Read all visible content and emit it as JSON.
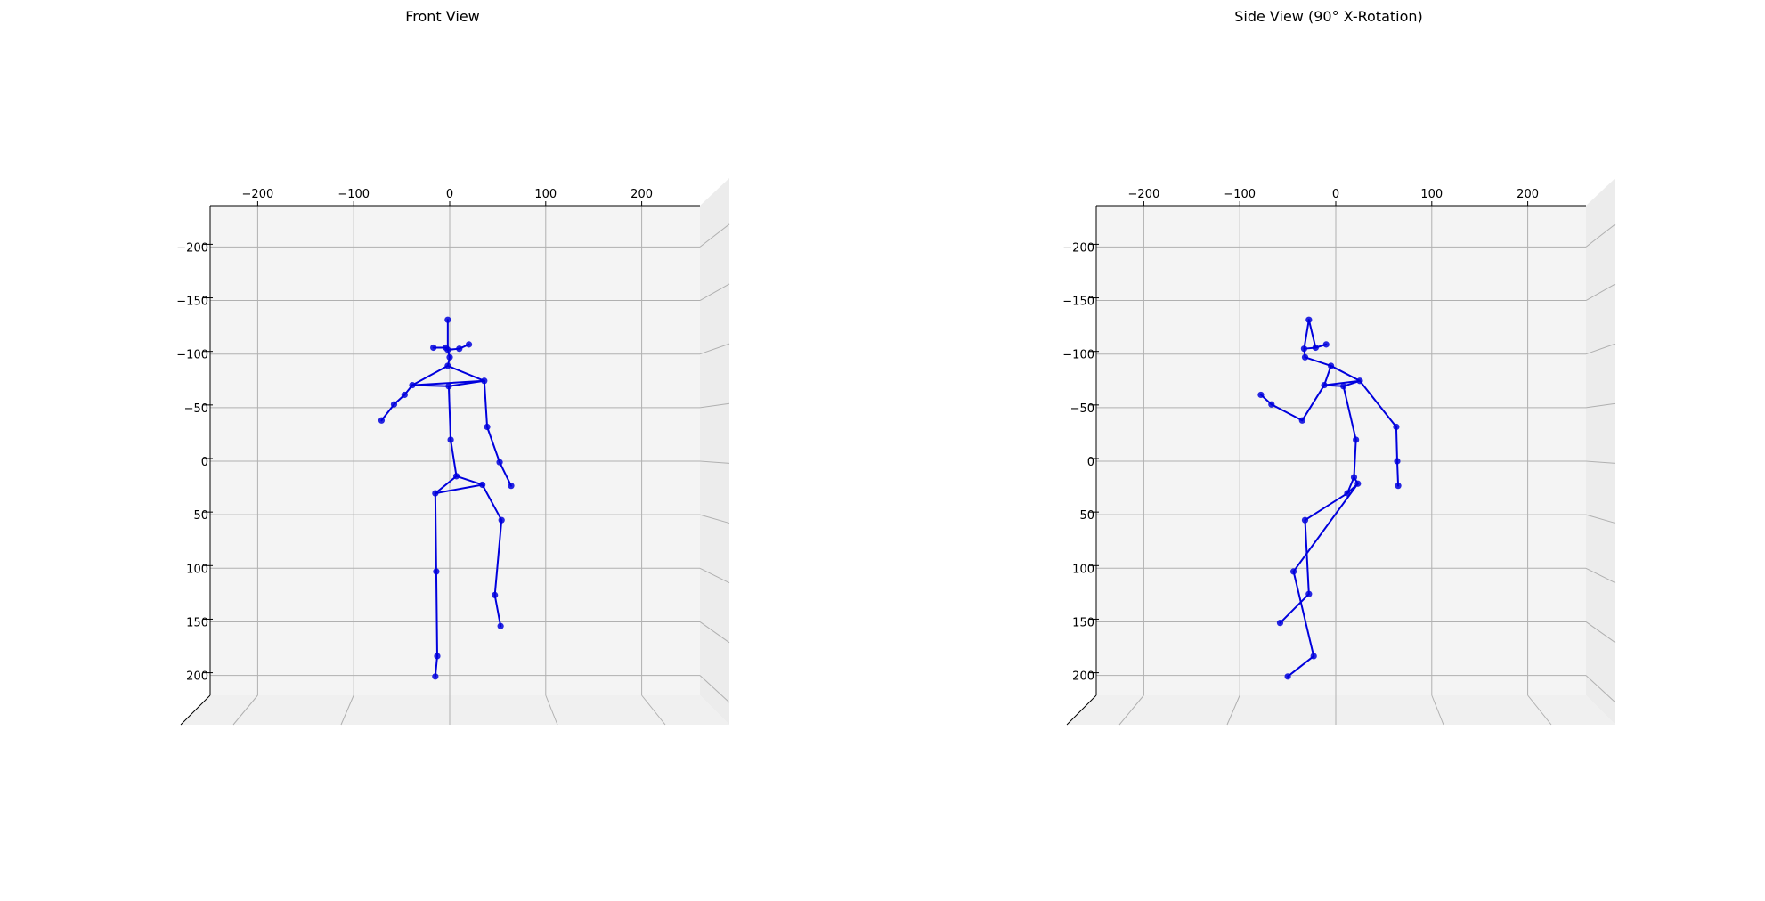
{
  "figure": {
    "colors": {
      "pane_back": "#f4f4f4",
      "pane_floor": "#f0f0f0",
      "pane_side": "#ececec",
      "grid": "#b0b0b0",
      "axis": "#000000",
      "skeleton": "#0000dd"
    }
  },
  "chart_data": [
    {
      "type": "scatter",
      "subtype": "3d-pose-skeleton",
      "title": "Front View",
      "x_ticks": [
        "−200",
        "−100",
        "0",
        "100",
        "200"
      ],
      "y_ticks": [
        "−200",
        "−150",
        "−100",
        "−50",
        "0",
        "50",
        "100",
        "150",
        "200"
      ],
      "xlim": [
        -250,
        260
      ],
      "ylim": [
        -250,
        220
      ],
      "joints": [
        {
          "name": "head-top",
          "x": -2,
          "y": -132
        },
        {
          "name": "ear-left",
          "x": -17,
          "y": -106
        },
        {
          "name": "eye-left",
          "x": -4,
          "y": -106
        },
        {
          "name": "nose",
          "x": -2,
          "y": -104
        },
        {
          "name": "eye-right",
          "x": 10,
          "y": -105
        },
        {
          "name": "ear-right",
          "x": 20,
          "y": -109
        },
        {
          "name": "chin",
          "x": 0,
          "y": -97
        },
        {
          "name": "neck",
          "x": -2,
          "y": -89
        },
        {
          "name": "shoulder-left",
          "x": -39,
          "y": -71
        },
        {
          "name": "chest",
          "x": -1,
          "y": -70
        },
        {
          "name": "shoulder-right",
          "x": 36,
          "y": -75
        },
        {
          "name": "elbow-left",
          "x": -47,
          "y": -62
        },
        {
          "name": "forearm-left",
          "x": -58,
          "y": -53
        },
        {
          "name": "wrist-left",
          "x": -71,
          "y": -38
        },
        {
          "name": "elbow-right",
          "x": 39,
          "y": -32
        },
        {
          "name": "forearm-right",
          "x": 52,
          "y": 1
        },
        {
          "name": "wrist-right",
          "x": 64,
          "y": 23
        },
        {
          "name": "spine",
          "x": 1,
          "y": -20
        },
        {
          "name": "pelvis",
          "x": 7,
          "y": 14
        },
        {
          "name": "hip-left",
          "x": -15,
          "y": 30
        },
        {
          "name": "hip-right",
          "x": 34,
          "y": 22
        },
        {
          "name": "knee-left",
          "x": -14,
          "y": 103
        },
        {
          "name": "ankle-left",
          "x": -13,
          "y": 182
        },
        {
          "name": "toe-left",
          "x": -15,
          "y": 201
        },
        {
          "name": "knee-right",
          "x": 54,
          "y": 55
        },
        {
          "name": "shin-right",
          "x": 47,
          "y": 125
        },
        {
          "name": "ankle-right",
          "x": 53,
          "y": 154
        }
      ],
      "bones": [
        [
          0,
          3
        ],
        [
          1,
          2
        ],
        [
          2,
          3
        ],
        [
          3,
          4
        ],
        [
          4,
          5
        ],
        [
          3,
          6
        ],
        [
          6,
          7
        ],
        [
          7,
          8
        ],
        [
          7,
          10
        ],
        [
          8,
          10
        ],
        [
          8,
          9
        ],
        [
          10,
          9
        ],
        [
          8,
          11
        ],
        [
          11,
          12
        ],
        [
          12,
          13
        ],
        [
          10,
          14
        ],
        [
          14,
          15
        ],
        [
          15,
          16
        ],
        [
          9,
          17
        ],
        [
          17,
          18
        ],
        [
          18,
          19
        ],
        [
          18,
          20
        ],
        [
          19,
          20
        ],
        [
          19,
          21
        ],
        [
          21,
          22
        ],
        [
          22,
          23
        ],
        [
          20,
          24
        ],
        [
          24,
          25
        ],
        [
          25,
          26
        ]
      ]
    },
    {
      "type": "scatter",
      "subtype": "3d-pose-skeleton",
      "title": "Side View (90° X-Rotation)",
      "x_ticks": [
        "−200",
        "−100",
        "0",
        "100",
        "200"
      ],
      "y_ticks": [
        "−200",
        "−150",
        "−100",
        "−50",
        "0",
        "50",
        "100",
        "150",
        "200"
      ],
      "xlim": [
        -250,
        260
      ],
      "ylim": [
        -250,
        220
      ],
      "joints": [
        {
          "name": "head-top",
          "x": -28,
          "y": -132
        },
        {
          "name": "ear-left",
          "x": -33,
          "y": -105
        },
        {
          "name": "eye-left",
          "x": -21,
          "y": -106
        },
        {
          "name": "ear-right",
          "x": -10,
          "y": -109
        },
        {
          "name": "chin",
          "x": -32,
          "y": -97
        },
        {
          "name": "neck",
          "x": -5,
          "y": -89
        },
        {
          "name": "shoulder-left",
          "x": -12,
          "y": -71
        },
        {
          "name": "chest",
          "x": 8,
          "y": -70
        },
        {
          "name": "shoulder-right",
          "x": 25,
          "y": -75
        },
        {
          "name": "wrist-left",
          "x": -78,
          "y": -62
        },
        {
          "name": "forearm-left",
          "x": -67,
          "y": -53
        },
        {
          "name": "elbow-left",
          "x": -35,
          "y": -38
        },
        {
          "name": "elbow-right",
          "x": 63,
          "y": -32
        },
        {
          "name": "forearm-right",
          "x": 64,
          "y": 0
        },
        {
          "name": "wrist-right",
          "x": 65,
          "y": 23
        },
        {
          "name": "spine",
          "x": 21,
          "y": -20
        },
        {
          "name": "pelvis",
          "x": 19,
          "y": 15
        },
        {
          "name": "hip-right",
          "x": 23,
          "y": 21
        },
        {
          "name": "hip-left",
          "x": 12,
          "y": 30
        },
        {
          "name": "knee-left",
          "x": -32,
          "y": 55
        },
        {
          "name": "shin-left",
          "x": -28,
          "y": 124
        },
        {
          "name": "ankle-left",
          "x": -58,
          "y": 151
        },
        {
          "name": "knee-right",
          "x": -44,
          "y": 103
        },
        {
          "name": "ankle-right",
          "x": -23,
          "y": 182
        },
        {
          "name": "toe-right",
          "x": -50,
          "y": 201
        }
      ],
      "bones": [
        [
          0,
          1
        ],
        [
          0,
          2
        ],
        [
          1,
          2
        ],
        [
          2,
          3
        ],
        [
          1,
          4
        ],
        [
          4,
          5
        ],
        [
          5,
          6
        ],
        [
          5,
          8
        ],
        [
          6,
          8
        ],
        [
          6,
          7
        ],
        [
          8,
          7
        ],
        [
          6,
          11
        ],
        [
          11,
          10
        ],
        [
          10,
          9
        ],
        [
          8,
          12
        ],
        [
          12,
          13
        ],
        [
          13,
          14
        ],
        [
          7,
          15
        ],
        [
          15,
          16
        ],
        [
          16,
          17
        ],
        [
          16,
          18
        ],
        [
          17,
          18
        ],
        [
          18,
          19
        ],
        [
          19,
          20
        ],
        [
          20,
          21
        ],
        [
          17,
          22
        ],
        [
          22,
          23
        ],
        [
          23,
          24
        ]
      ]
    }
  ]
}
